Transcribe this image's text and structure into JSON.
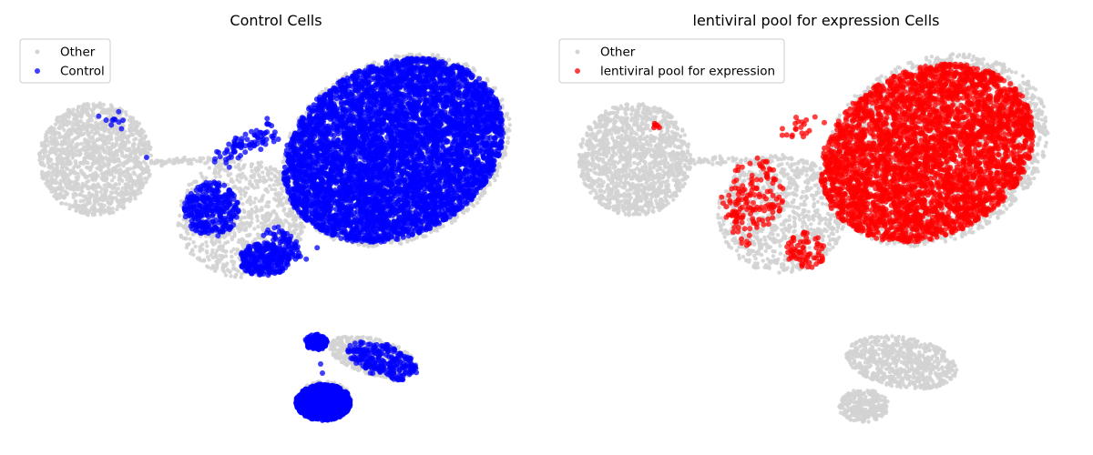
{
  "colors": {
    "background_cells": "#d3d3d3",
    "control_highlight": "#0000ff",
    "lentiviral_highlight": "#ff0000",
    "legend_frame": "#cccccc"
  },
  "chart_data": [
    {
      "type": "scatter",
      "title": "Control Cells",
      "xlabel": "",
      "ylabel": "",
      "grid": false,
      "axes_visible": false,
      "legend_position": "top-left",
      "series": [
        {
          "name": "Other",
          "color": "#d3d3d3",
          "role": "background"
        },
        {
          "name": "Control",
          "color": "#0000ff",
          "role": "highlight"
        }
      ]
    },
    {
      "type": "scatter",
      "title": "lentiviral pool for expression Cells",
      "xlabel": "",
      "ylabel": "",
      "grid": false,
      "axes_visible": false,
      "legend_position": "top-left",
      "series": [
        {
          "name": "Other",
          "color": "#d3d3d3",
          "role": "background"
        },
        {
          "name": "lentiviral pool for expression",
          "color": "#ff0000",
          "role": "highlight"
        }
      ]
    }
  ]
}
